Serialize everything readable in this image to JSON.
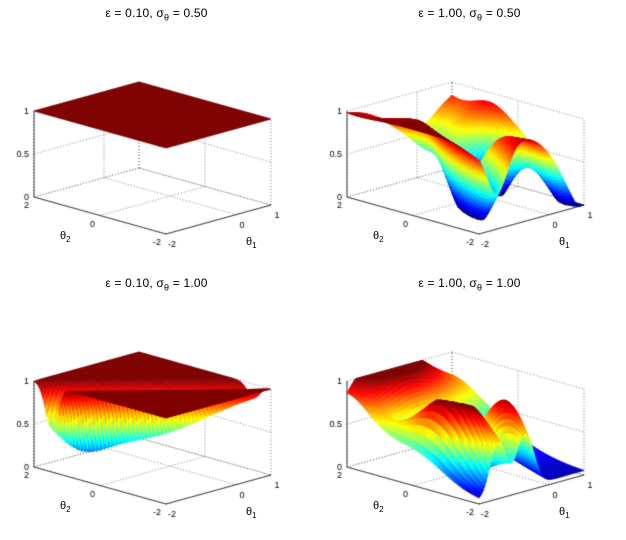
{
  "page": {
    "background": "#ffffff"
  },
  "chart_data": {
    "type": "surface",
    "layout": {
      "rows": 2,
      "cols": 2
    },
    "colormap": "jet",
    "grid_n": 72,
    "axes": {
      "xlim": [
        -2,
        1
      ],
      "ylim": [
        -2,
        2
      ],
      "zlim": [
        0,
        1
      ],
      "xticks": {
        "values": [
          -2,
          0,
          1
        ],
        "labels": [
          "-2",
          "0",
          "1"
        ]
      },
      "yticks": {
        "values": [
          -2,
          0,
          2
        ],
        "labels": [
          "-2",
          "0",
          "2"
        ]
      },
      "zticks": {
        "values": [
          0,
          0.5,
          1
        ],
        "labels": [
          "0",
          "0.5",
          "1"
        ]
      },
      "xlabel": {
        "base": "θ",
        "sub": "1"
      },
      "ylabel": {
        "base": "θ",
        "sub": "2"
      },
      "grid": true
    },
    "plots": [
      {
        "position": "top-left",
        "epsilon": 0.1,
        "sigma_theta": 0.5,
        "title": {
          "part1": "ε = 0.10, σ",
          "sub": "θ",
          "part3": " = 0.50"
        },
        "surface": {
          "description": "flat plateau at z=1",
          "base": 1.0,
          "clamp": [
            0,
            1
          ],
          "components": []
        }
      },
      {
        "position": "top-right",
        "epsilon": 1.0,
        "sigma_theta": 0.5,
        "title": {
          "part1": "ε = 1.00, σ",
          "sub": "θ",
          "part3": " = 0.50"
        },
        "surface": {
          "description": "plateau at 1 with deep wells to 0 and back dip",
          "base": 1.0,
          "clamp": [
            0,
            1
          ],
          "components": [
            {
              "amp": -1.15,
              "x0": -1.0,
              "y0": -0.7,
              "sx": 0.28,
              "sy": 1.2,
              "rot": -22
            },
            {
              "amp": -1.05,
              "x0": 0.25,
              "y0": 0.05,
              "sx": 0.38,
              "sy": 0.5,
              "rot": 0
            },
            {
              "amp": -1.25,
              "x0": 1.25,
              "y0": -1.7,
              "sx": 0.75,
              "sy": 0.85,
              "rot": 0
            },
            {
              "amp": -0.45,
              "x0": -0.1,
              "y0": 1.7,
              "sx": 0.8,
              "sy": 0.55,
              "rot": 0
            }
          ]
        }
      },
      {
        "position": "bottom-left",
        "epsilon": 0.1,
        "sigma_theta": 1.0,
        "title": {
          "part1": "ε = 0.10, σ",
          "sub": "θ",
          "part3": " = 1.00"
        },
        "surface": {
          "description": "plateau at 1 with narrow diagonal trench along θ1+θ2≈-0.5, deepest ~0.2",
          "base": 1.0,
          "clamp": [
            0,
            1
          ],
          "components": [
            {
              "amp": -0.62,
              "x0": -0.75,
              "y0": 0.25,
              "sx": 1.5,
              "sy": 0.13,
              "rot": -45
            },
            {
              "amp": -0.3,
              "x0": -1.6,
              "y0": 1.1,
              "sx": 0.55,
              "sy": 0.12,
              "rot": -45
            }
          ]
        }
      },
      {
        "position": "bottom-right",
        "epsilon": 1.0,
        "sigma_theta": 1.0,
        "title": {
          "part1": "ε = 1.00, σ",
          "sub": "θ",
          "part3": " = 1.00"
        },
        "surface": {
          "description": "low floor near 0 with ridge fingers at 1, back-left plateau, rise toward back-right",
          "base": 0.04,
          "clamp": [
            0,
            1
          ],
          "components": [
            {
              "amp": 1.1,
              "x0": -1.1,
              "y0": 2.1,
              "sx": 1.05,
              "sy": 0.85,
              "rot": 0
            },
            {
              "amp": 1.05,
              "x0": -1.6,
              "y0": -0.9,
              "sx": 0.22,
              "sy": 1.1,
              "rot": 8
            },
            {
              "amp": 0.9,
              "x0": -0.55,
              "y0": -1.3,
              "sx": 0.24,
              "sy": 0.85,
              "rot": -12
            },
            {
              "amp": 0.55,
              "x0": 1.1,
              "y0": 2.1,
              "sx": 1.3,
              "sy": 1.5,
              "rot": 0
            }
          ]
        }
      }
    ]
  }
}
